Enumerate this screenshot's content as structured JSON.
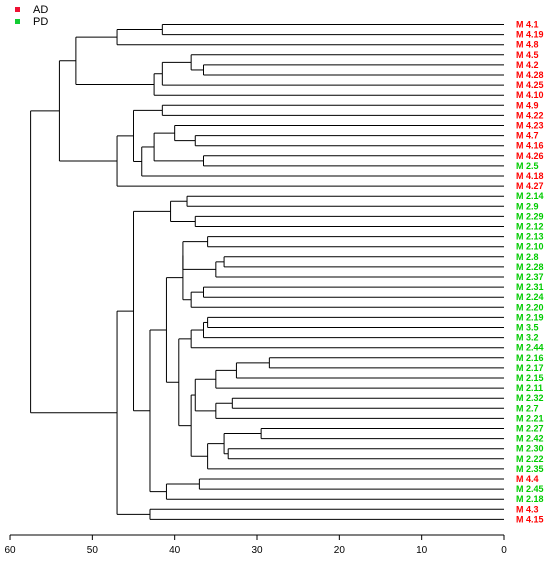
{
  "chart_data": {
    "type": "dendrogram",
    "title": "",
    "xlabel": "",
    "ylabel": "",
    "x_axis": {
      "ticks": [
        60,
        50,
        40,
        30,
        20,
        10,
        0
      ],
      "xlim": [
        60,
        0
      ],
      "orientation": "reversed"
    },
    "legend": {
      "placement": "top-left",
      "entries": [
        {
          "label": "AD",
          "color": "#ee1133"
        },
        {
          "label": "PD",
          "color": "#11cc33"
        }
      ]
    },
    "colors": {
      "AD": "#ff0000",
      "PD": "#00cc00",
      "line": "#000000"
    },
    "leaves": [
      {
        "label": "M 4.1",
        "group": "AD"
      },
      {
        "label": "M 4.19",
        "group": "AD"
      },
      {
        "label": "M 4.8",
        "group": "AD"
      },
      {
        "label": "M 4.5",
        "group": "AD"
      },
      {
        "label": "M 4.2",
        "group": "AD"
      },
      {
        "label": "M 4.28",
        "group": "AD"
      },
      {
        "label": "M 4.25",
        "group": "AD"
      },
      {
        "label": "M 4.10",
        "group": "AD"
      },
      {
        "label": "M 4.9",
        "group": "AD"
      },
      {
        "label": "M 4.22",
        "group": "AD"
      },
      {
        "label": "M 4.23",
        "group": "AD"
      },
      {
        "label": "M 4.7",
        "group": "AD"
      },
      {
        "label": "M 4.16",
        "group": "AD"
      },
      {
        "label": "M 4.26",
        "group": "AD"
      },
      {
        "label": "M 2.5",
        "group": "PD"
      },
      {
        "label": "M 4.18",
        "group": "AD"
      },
      {
        "label": "M 4.27",
        "group": "AD"
      },
      {
        "label": "M 2.14",
        "group": "PD"
      },
      {
        "label": "M 2.9",
        "group": "PD"
      },
      {
        "label": "M 2.29",
        "group": "PD"
      },
      {
        "label": "M 2.12",
        "group": "PD"
      },
      {
        "label": "M 2.13",
        "group": "PD"
      },
      {
        "label": "M 2.10",
        "group": "PD"
      },
      {
        "label": "M 2.8",
        "group": "PD"
      },
      {
        "label": "M 2.28",
        "group": "PD"
      },
      {
        "label": "M 2.37",
        "group": "PD"
      },
      {
        "label": "M 2.31",
        "group": "PD"
      },
      {
        "label": "M 2.24",
        "group": "PD"
      },
      {
        "label": "M 2.20",
        "group": "PD"
      },
      {
        "label": "M 2.19",
        "group": "PD"
      },
      {
        "label": "M 3.5",
        "group": "PD"
      },
      {
        "label": "M 3.2",
        "group": "PD"
      },
      {
        "label": "M 2.44",
        "group": "PD"
      },
      {
        "label": "M 2.16",
        "group": "PD"
      },
      {
        "label": "M 2.17",
        "group": "PD"
      },
      {
        "label": "M 2.15",
        "group": "PD"
      },
      {
        "label": "M 2.11",
        "group": "PD"
      },
      {
        "label": "M 2.32",
        "group": "PD"
      },
      {
        "label": "M 2.7",
        "group": "PD"
      },
      {
        "label": "M 2.21",
        "group": "PD"
      },
      {
        "label": "M 2.27",
        "group": "PD"
      },
      {
        "label": "M 2.42",
        "group": "PD"
      },
      {
        "label": "M 2.30",
        "group": "PD"
      },
      {
        "label": "M 2.22",
        "group": "PD"
      },
      {
        "label": "M 2.35",
        "group": "PD"
      },
      {
        "label": "M 4.4",
        "group": "AD"
      },
      {
        "label": "M 2.45",
        "group": "PD"
      },
      {
        "label": "M 2.18",
        "group": "PD"
      },
      {
        "label": "M 4.3",
        "group": "AD"
      },
      {
        "label": "M 4.15",
        "group": "AD"
      }
    ],
    "merges": [
      {
        "id": "c1",
        "a": 0,
        "b": 1,
        "height": 41.5
      },
      {
        "id": "c2",
        "a": "c1",
        "b": 2,
        "height": 47.0
      },
      {
        "id": "c3",
        "a": 4,
        "b": 5,
        "height": 36.5
      },
      {
        "id": "c4",
        "a": 3,
        "b": "c3",
        "height": 38.0
      },
      {
        "id": "c5",
        "a": "c4",
        "b": 6,
        "height": 41.5
      },
      {
        "id": "c6",
        "a": "c5",
        "b": 7,
        "height": 42.5
      },
      {
        "id": "c7",
        "a": "c2",
        "b": "c6",
        "height": 52.0
      },
      {
        "id": "c8",
        "a": 8,
        "b": 9,
        "height": 41.5
      },
      {
        "id": "c9",
        "a": 11,
        "b": 12,
        "height": 37.5
      },
      {
        "id": "c10",
        "a": 10,
        "b": "c9",
        "height": 40.0
      },
      {
        "id": "c11",
        "a": 13,
        "b": 14,
        "height": 36.5
      },
      {
        "id": "c12",
        "a": "c10",
        "b": "c11",
        "height": 42.5
      },
      {
        "id": "c13",
        "a": "c12",
        "b": 15,
        "height": 44.0
      },
      {
        "id": "c14",
        "a": "c8",
        "b": "c13",
        "height": 45.0
      },
      {
        "id": "c15",
        "a": "c14",
        "b": 16,
        "height": 47.0
      },
      {
        "id": "c16",
        "a": "c7",
        "b": "c15",
        "height": 54.0
      },
      {
        "id": "c17",
        "a": 17,
        "b": 18,
        "height": 38.5
      },
      {
        "id": "c18",
        "a": 19,
        "b": 20,
        "height": 37.5
      },
      {
        "id": "c19",
        "a": "c17",
        "b": "c18",
        "height": 40.5
      },
      {
        "id": "c20",
        "a": 21,
        "b": 22,
        "height": 36.0
      },
      {
        "id": "c21",
        "a": 23,
        "b": 24,
        "height": 34.0
      },
      {
        "id": "c22",
        "a": "c21",
        "b": 25,
        "height": 35.0
      },
      {
        "id": "c23",
        "a": "c20",
        "b": "c22",
        "height": 39.0
      },
      {
        "id": "c24",
        "a": 26,
        "b": 27,
        "height": 36.5
      },
      {
        "id": "c25",
        "a": "c24",
        "b": 28,
        "height": 38.0
      },
      {
        "id": "c26",
        "a": "c23",
        "b": "c25",
        "height": 39.0
      },
      {
        "id": "c27",
        "a": 29,
        "b": 30,
        "height": 36.0
      },
      {
        "id": "c28",
        "a": "c27",
        "b": 31,
        "height": 36.5
      },
      {
        "id": "c29",
        "a": "c28",
        "b": 32,
        "height": 38.0
      },
      {
        "id": "c30",
        "a": 33,
        "b": 34,
        "height": 28.5
      },
      {
        "id": "c31",
        "a": "c30",
        "b": 35,
        "height": 32.5
      },
      {
        "id": "c32",
        "a": "c31",
        "b": 36,
        "height": 35.0
      },
      {
        "id": "c33",
        "a": 37,
        "b": 38,
        "height": 33.0
      },
      {
        "id": "c34",
        "a": "c33",
        "b": 39,
        "height": 35.0
      },
      {
        "id": "c35",
        "a": "c32",
        "b": "c34",
        "height": 37.5
      },
      {
        "id": "c36",
        "a": 40,
        "b": 41,
        "height": 29.5
      },
      {
        "id": "c37",
        "a": 42,
        "b": 43,
        "height": 33.5
      },
      {
        "id": "c38",
        "a": "c36",
        "b": "c37",
        "height": 34.0
      },
      {
        "id": "c39",
        "a": "c38",
        "b": 44,
        "height": 36.0
      },
      {
        "id": "c40",
        "a": "c35",
        "b": "c39",
        "height": 38.0
      },
      {
        "id": "c41",
        "a": "c29",
        "b": "c40",
        "height": 39.5
      },
      {
        "id": "c42",
        "a": "c26",
        "b": "c41",
        "height": 41.0
      },
      {
        "id": "c43",
        "a": 45,
        "b": 46,
        "height": 37.0
      },
      {
        "id": "c44",
        "a": "c43",
        "b": 47,
        "height": 41.0
      },
      {
        "id": "c45",
        "a": "c42",
        "b": "c44",
        "height": 43.0
      },
      {
        "id": "c46",
        "a": "c19",
        "b": "c45",
        "height": 45.0
      },
      {
        "id": "c47",
        "a": 48,
        "b": 49,
        "height": 43.0
      },
      {
        "id": "c48",
        "a": "c47",
        "b": 47.5,
        "height": 45.5
      },
      {
        "id": "c49",
        "a": "c46",
        "b": "c47",
        "height": 47.0
      },
      {
        "id": "c50",
        "a": "c16",
        "b": "c49",
        "height": 57.5
      }
    ]
  }
}
